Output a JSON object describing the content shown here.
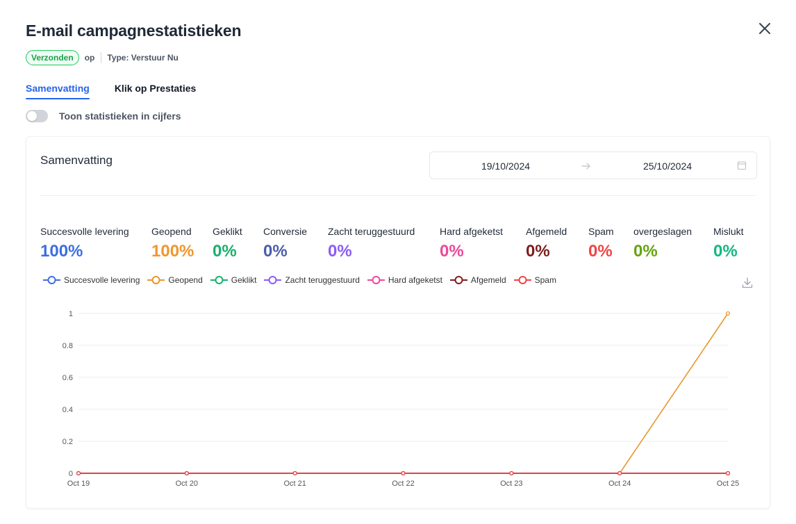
{
  "header": {
    "title": "E-mail campagnestatistieken",
    "close_icon": "close-icon"
  },
  "meta": {
    "status": "Verzonden",
    "op": "op",
    "type": "Type: Verstuur Nu",
    "status_color": "#16a34a"
  },
  "tabs": [
    {
      "label": "Samenvatting",
      "active": true
    },
    {
      "label": "Klik op Prestaties",
      "active": false
    }
  ],
  "toggle": {
    "label": "Toon statistieken in cijfers",
    "on": false
  },
  "summary": {
    "title": "Samenvatting",
    "date_start": "19/10/2024",
    "date_end": "25/10/2024",
    "stats": [
      {
        "label": "Succesvolle levering",
        "value": "100%",
        "color": "#3b6fe0"
      },
      {
        "label": "Geopend",
        "value": "100%",
        "color": "#f0962d"
      },
      {
        "label": "Geklikt",
        "value": "0%",
        "color": "#16b06b"
      },
      {
        "label": "Conversie",
        "value": "0%",
        "color": "#4a5da8"
      },
      {
        "label": "Zacht teruggestuurd",
        "value": "0%",
        "color": "#8b5cf6"
      },
      {
        "label": "Hard afgeketst",
        "value": "0%",
        "color": "#ec4899"
      },
      {
        "label": "Afgemeld",
        "value": "0%",
        "color": "#7f1d1d"
      },
      {
        "label": "Spam",
        "value": "0%",
        "color": "#ef4444"
      },
      {
        "label": "overgeslagen",
        "value": "0%",
        "color": "#65a30d"
      },
      {
        "label": "Mislukt",
        "value": "0%",
        "color": "#10b981"
      }
    ]
  },
  "chart_data": {
    "type": "line",
    "categories": [
      "Oct 19",
      "Oct 20",
      "Oct 21",
      "Oct 22",
      "Oct 23",
      "Oct 24",
      "Oct 25"
    ],
    "ylim": [
      0,
      1
    ],
    "yticks": [
      "0",
      "0.2",
      "0.4",
      "0.6",
      "0.8",
      "1"
    ],
    "grid": true,
    "legend_position": "top-left",
    "series": [
      {
        "name": "Succesvolle levering",
        "color": "#3b6fe0",
        "values": [
          0,
          0,
          0,
          0,
          0,
          0,
          0
        ]
      },
      {
        "name": "Geopend",
        "color": "#e8962d",
        "values": [
          0,
          0,
          0,
          0,
          0,
          0,
          1
        ]
      },
      {
        "name": "Geklikt",
        "color": "#16b06b",
        "values": [
          0,
          0,
          0,
          0,
          0,
          0,
          0
        ]
      },
      {
        "name": "Zacht teruggestuurd",
        "color": "#8b5cf6",
        "values": [
          0,
          0,
          0,
          0,
          0,
          0,
          0
        ]
      },
      {
        "name": "Hard afgeketst",
        "color": "#ec4899",
        "values": [
          0,
          0,
          0,
          0,
          0,
          0,
          0
        ]
      },
      {
        "name": "Afgemeld",
        "color": "#7f1d1d",
        "values": [
          0,
          0,
          0,
          0,
          0,
          0,
          0
        ]
      },
      {
        "name": "Spam",
        "color": "#ef4444",
        "values": [
          0,
          0,
          0,
          0,
          0,
          0,
          0
        ]
      }
    ]
  }
}
